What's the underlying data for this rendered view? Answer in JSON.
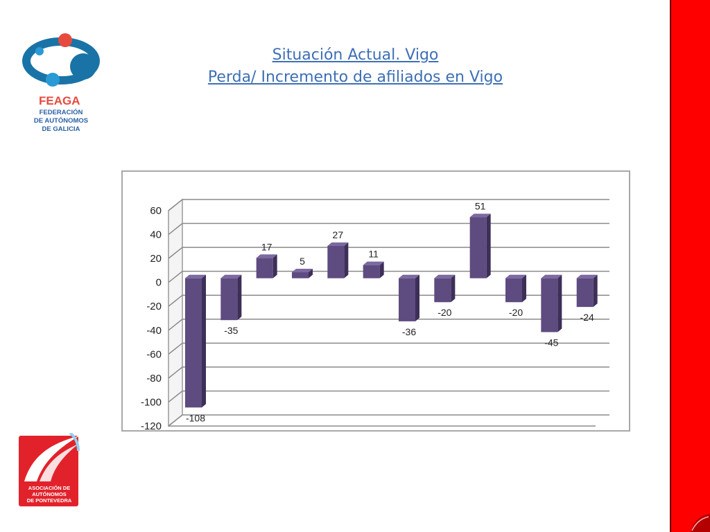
{
  "slide": {
    "title_line1": "Situación Actual. Vigo",
    "title_line2": "Perda/ Incremento de afiliados en Vigo"
  },
  "logos": {
    "feaga_name": "FEAGA",
    "feaga_sub": [
      "FEDERACIÓN",
      "DE AUTÓNOMOS",
      "DE GALICIA"
    ],
    "aap_text": [
      "ASOCIACIÓN DE",
      "AUTÓNOMOS",
      "DE PONTEVEDRA"
    ]
  },
  "colors": {
    "bar_front": "#5e4b80",
    "bar_side": "#3d2f58",
    "bar_top": "#7c69a0",
    "accent_red": "#ff0000",
    "title_blue": "#3d6fb5"
  },
  "chart_data": {
    "type": "bar",
    "style": "3d-column",
    "title": "",
    "xlabel": "",
    "ylabel": "",
    "ylim": [
      -120,
      60
    ],
    "yticks": [
      60,
      40,
      20,
      0,
      -20,
      -40,
      -60,
      -80,
      -100,
      -120
    ],
    "grid": true,
    "legend": "none",
    "series": [
      {
        "values": [
          -108,
          -35,
          17,
          5,
          27,
          11,
          -36,
          -20,
          51,
          -20,
          -45,
          -24
        ],
        "labels": [
          "-108",
          "-35",
          "17",
          "5",
          "27",
          "11",
          "-36",
          "-20",
          "51",
          "-20",
          "-45",
          "-24"
        ]
      }
    ]
  }
}
